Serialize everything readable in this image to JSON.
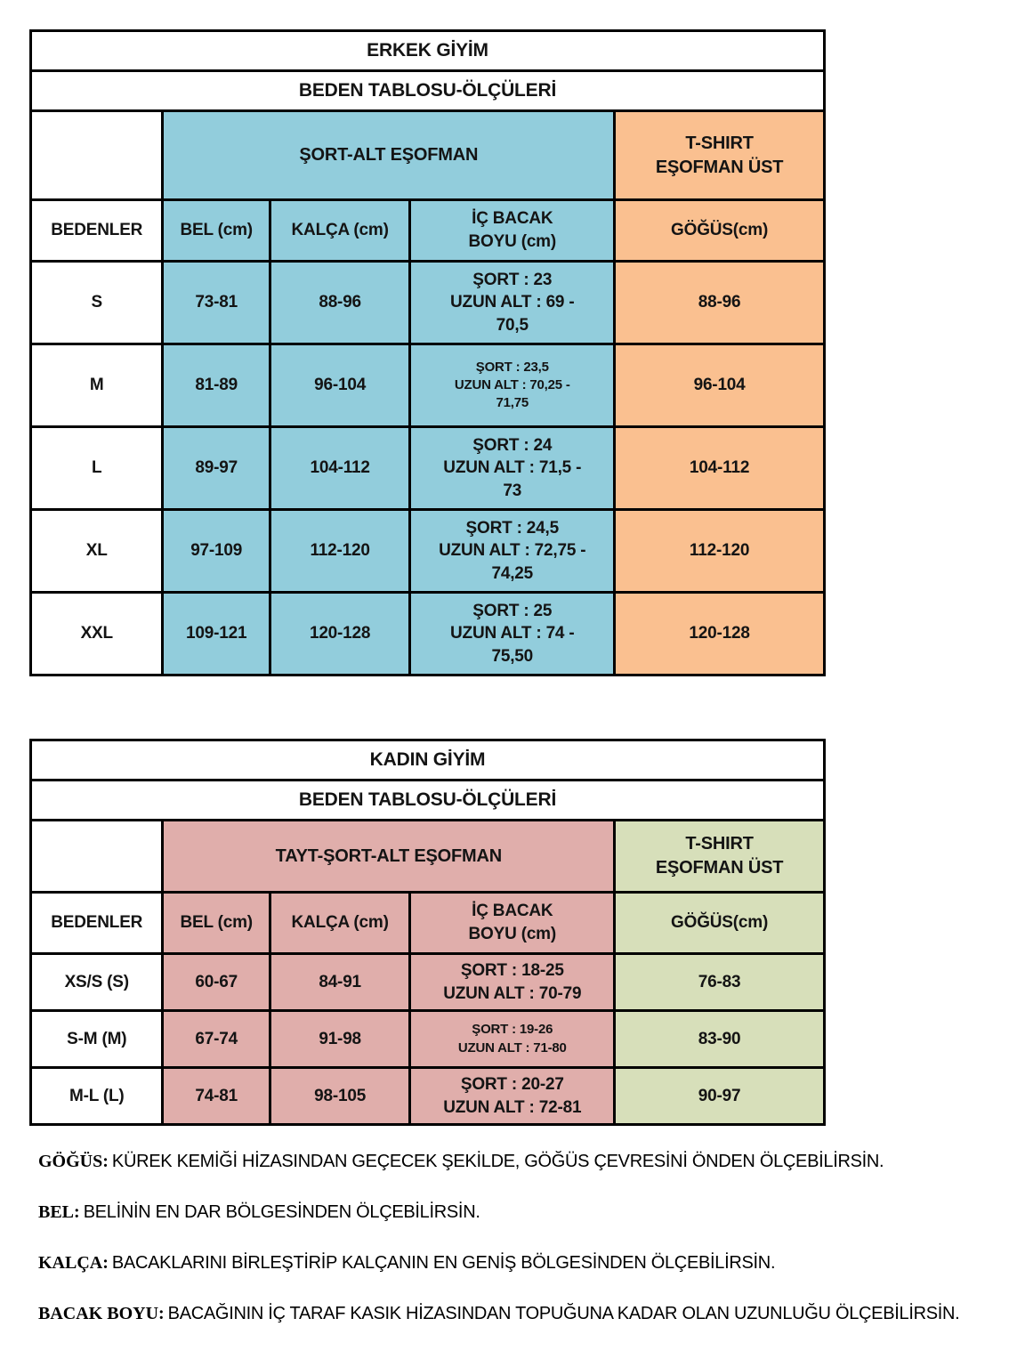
{
  "colors": {
    "men-bottoms": "#92CDDC",
    "men-tops": "#FAC090",
    "women-bottoms": "#E0AEAB",
    "women-tops": "#D7DFBA",
    "border": "#000000"
  },
  "tables": [
    {
      "title": "ERKEK GİYİM",
      "subtitle": "BEDEN TABLOSU-ÖLÇÜLERİ",
      "bottoms_header": "ŞORT-ALT EŞOFMAN",
      "tops_header": "T-SHIRT\nEŞOFMAN ÜST",
      "columns": {
        "size": "BEDENLER",
        "waist": "BEL (cm)",
        "hip": "KALÇA (cm)",
        "inseam": "İÇ BACAK\nBOYU (cm)",
        "chest": "GÖĞÜS(cm)"
      },
      "rows": [
        {
          "size": "S",
          "waist": "73-81",
          "hip": "88-96",
          "inseam": "ŞORT : 23\nUZUN ALT : 69 -\n70,5",
          "chest": "88-96"
        },
        {
          "size": "M",
          "waist": "81-89",
          "hip": "96-104",
          "inseam": "ŞORT : 23,5\nUZUN ALT : 70,25 -\n71,75",
          "chest": "96-104"
        },
        {
          "size": "L",
          "waist": "89-97",
          "hip": "104-112",
          "inseam": "ŞORT : 24\nUZUN ALT : 71,5 -\n73",
          "chest": "104-112"
        },
        {
          "size": "XL",
          "waist": "97-109",
          "hip": "112-120",
          "inseam": "ŞORT : 24,5\nUZUN ALT : 72,75 -\n74,25",
          "chest": "112-120"
        },
        {
          "size": "XXL",
          "waist": "109-121",
          "hip": "120-128",
          "inseam": "ŞORT : 25\nUZUN ALT : 74 -\n75,50",
          "chest": "120-128"
        }
      ]
    },
    {
      "title": "KADIN GİYİM",
      "subtitle": "BEDEN TABLOSU-ÖLÇÜLERİ",
      "bottoms_header": "TAYT-ŞORT-ALT EŞOFMAN",
      "tops_header": "T-SHIRT\nEŞOFMAN ÜST",
      "columns": {
        "size": "BEDENLER",
        "waist": "BEL (cm)",
        "hip": "KALÇA (cm)",
        "inseam": "İÇ BACAK\nBOYU (cm)",
        "chest": "GÖĞÜS(cm)"
      },
      "rows": [
        {
          "size": "XS/S  (S)",
          "waist": "60-67",
          "hip": "84-91",
          "inseam": "ŞORT : 18-25\nUZUN ALT : 70-79",
          "chest": "76-83"
        },
        {
          "size": "S-M (M)",
          "waist": "67-74",
          "hip": "91-98",
          "inseam": "ŞORT : 19-26\nUZUN ALT : 71-80",
          "chest": "83-90"
        },
        {
          "size": "M-L (L)",
          "waist": "74-81",
          "hip": "98-105",
          "inseam": "ŞORT : 20-27\nUZUN ALT : 72-81",
          "chest": "90-97"
        }
      ]
    }
  ],
  "notes": [
    {
      "term": "GÖĞÜS:",
      "text": "KÜREK KEMİĞİ HİZASINDAN GEÇECEK ŞEKİLDE, GÖĞÜS ÇEVRESİNİ ÖNDEN ÖLÇEBİLİRSİN."
    },
    {
      "term": "BEL:",
      "text": "BELİNİN EN DAR BÖLGESİNDEN ÖLÇEBİLİRSİN."
    },
    {
      "term": "KALÇA:",
      "text": "BACAKLARINI BİRLEŞTİRİP KALÇANIN EN GENİŞ BÖLGESİNDEN ÖLÇEBİLİRSİN."
    },
    {
      "term": "BACAK BOYU:",
      "text": "BACAĞININ İÇ TARAF KASIK HİZASINDAN TOPUĞUNA KADAR OLAN UZUNLUĞU ÖLÇEBİLİRSİN."
    }
  ]
}
